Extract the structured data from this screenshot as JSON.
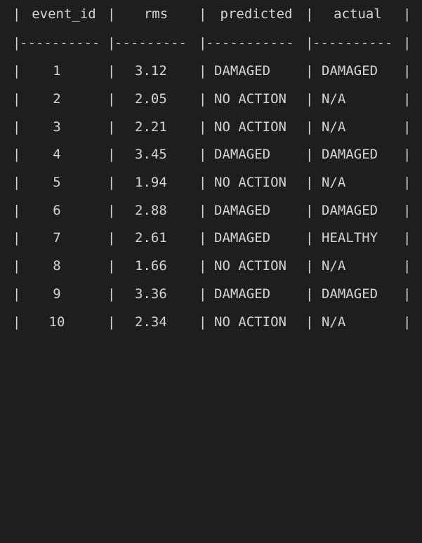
{
  "table": {
    "pipe": "|",
    "headers": {
      "event_id": "event_id",
      "rms": "rms",
      "predicted": "predicted",
      "actual": "actual"
    },
    "separator": {
      "seg1": "----------",
      "seg2": "---------",
      "seg3": "-----------",
      "seg4": "----------"
    },
    "rows": [
      {
        "event_id": "1",
        "rms": "3.12",
        "predicted": "DAMAGED",
        "actual": "DAMAGED"
      },
      {
        "event_id": "2",
        "rms": "2.05",
        "predicted": "NO ACTION",
        "actual": "N/A"
      },
      {
        "event_id": "3",
        "rms": "2.21",
        "predicted": "NO ACTION",
        "actual": "N/A"
      },
      {
        "event_id": "4",
        "rms": "3.45",
        "predicted": "DAMAGED",
        "actual": "DAMAGED"
      },
      {
        "event_id": "5",
        "rms": "1.94",
        "predicted": "NO ACTION",
        "actual": "N/A"
      },
      {
        "event_id": "6",
        "rms": "2.88",
        "predicted": "DAMAGED",
        "actual": "DAMAGED"
      },
      {
        "event_id": "7",
        "rms": "2.61",
        "predicted": "DAMAGED",
        "actual": "HEALTHY"
      },
      {
        "event_id": "8",
        "rms": "1.66",
        "predicted": "NO ACTION",
        "actual": "N/A"
      },
      {
        "event_id": "9",
        "rms": "3.36",
        "predicted": "DAMAGED",
        "actual": "DAMAGED"
      },
      {
        "event_id": "10",
        "rms": "2.34",
        "predicted": "NO ACTION",
        "actual": "N/A"
      }
    ]
  }
}
